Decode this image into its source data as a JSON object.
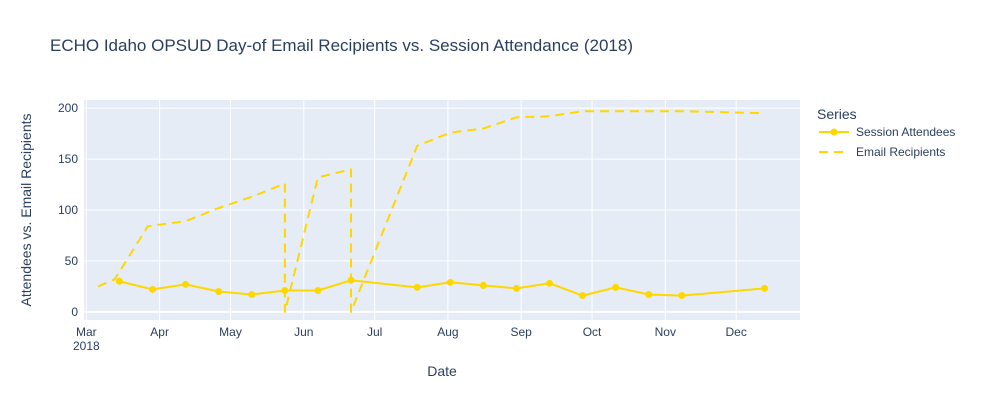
{
  "chart_data": {
    "type": "line",
    "title": "ECHO Idaho OPSUD Day-of Email Recipients vs. Session Attendance (2018)",
    "xlabel": "Date",
    "ylabel": "Attendees vs. Email Recipients",
    "xlim": [
      "2018-02-28",
      "2018-12-28"
    ],
    "ylim": [
      -8,
      208
    ],
    "grid": true,
    "x_ticks": [
      {
        "date": "2018-03-01",
        "label": "Mar",
        "sub": "2018"
      },
      {
        "date": "2018-04-01",
        "label": "Apr",
        "sub": ""
      },
      {
        "date": "2018-05-01",
        "label": "May",
        "sub": ""
      },
      {
        "date": "2018-06-01",
        "label": "Jun",
        "sub": ""
      },
      {
        "date": "2018-07-01",
        "label": "Jul",
        "sub": ""
      },
      {
        "date": "2018-08-01",
        "label": "Aug",
        "sub": ""
      },
      {
        "date": "2018-09-01",
        "label": "Sep",
        "sub": ""
      },
      {
        "date": "2018-10-01",
        "label": "Oct",
        "sub": ""
      },
      {
        "date": "2018-11-01",
        "label": "Nov",
        "sub": ""
      },
      {
        "date": "2018-12-01",
        "label": "Dec",
        "sub": ""
      }
    ],
    "y_ticks": [
      0,
      50,
      100,
      150,
      200
    ],
    "legend": {
      "title": "Series",
      "placement": "right"
    },
    "series": [
      {
        "name": "Session Attendees",
        "color": "#FFD700",
        "style": "lines+markers",
        "points": [
          {
            "x": "2018-03-15",
            "y": 30
          },
          {
            "x": "2018-03-29",
            "y": 22
          },
          {
            "x": "2018-04-12",
            "y": 27
          },
          {
            "x": "2018-04-26",
            "y": 20
          },
          {
            "x": "2018-05-10",
            "y": 17
          },
          {
            "x": "2018-05-24",
            "y": 21
          },
          {
            "x": "2018-06-07",
            "y": 21
          },
          {
            "x": "2018-06-21",
            "y": 31
          },
          {
            "x": "2018-07-19",
            "y": 24
          },
          {
            "x": "2018-08-02",
            "y": 29
          },
          {
            "x": "2018-08-16",
            "y": 26
          },
          {
            "x": "2018-08-30",
            "y": 23
          },
          {
            "x": "2018-09-13",
            "y": 28
          },
          {
            "x": "2018-09-27",
            "y": 16
          },
          {
            "x": "2018-10-11",
            "y": 24
          },
          {
            "x": "2018-10-25",
            "y": 17
          },
          {
            "x": "2018-11-08",
            "y": 16
          },
          {
            "x": "2018-12-13",
            "y": 23
          }
        ]
      },
      {
        "name": "Email Recipients",
        "color": "#FFD700",
        "style": "dash",
        "points": [
          {
            "x": "2018-03-06",
            "y": 25
          },
          {
            "x": "2018-03-13",
            "y": 32
          },
          {
            "x": "2018-03-27",
            "y": 84
          },
          {
            "x": "2018-04-12",
            "y": 89
          },
          {
            "x": "2018-04-26",
            "y": 102
          },
          {
            "x": "2018-05-10",
            "y": 113
          },
          {
            "x": "2018-05-24",
            "y": 126
          },
          {
            "x": "2018-05-24",
            "y": 0
          },
          {
            "x": "2018-06-07",
            "y": 132
          },
          {
            "x": "2018-06-21",
            "y": 140
          },
          {
            "x": "2018-06-21",
            "y": 0
          },
          {
            "x": "2018-07-19",
            "y": 163
          },
          {
            "x": "2018-08-02",
            "y": 176
          },
          {
            "x": "2018-08-16",
            "y": 180
          },
          {
            "x": "2018-08-30",
            "y": 191
          },
          {
            "x": "2018-09-13",
            "y": 192
          },
          {
            "x": "2018-09-27",
            "y": 197
          },
          {
            "x": "2018-10-11",
            "y": 197
          },
          {
            "x": "2018-10-25",
            "y": 197
          },
          {
            "x": "2018-11-08",
            "y": 197
          },
          {
            "x": "2018-12-13",
            "y": 195
          }
        ]
      }
    ]
  }
}
